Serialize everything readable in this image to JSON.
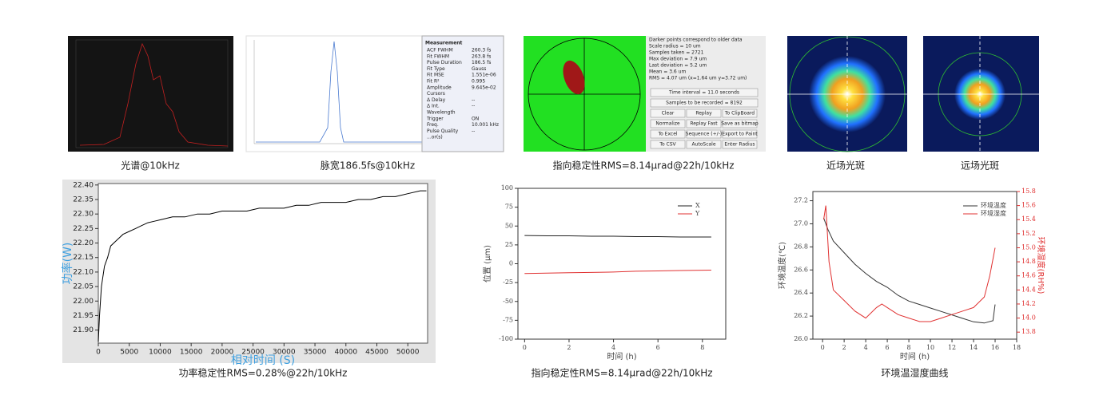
{
  "images": [
    {
      "caption": "光谱@10kHz"
    },
    {
      "caption": "脉宽186.5fs@10kHz",
      "measurement_title": "Measurement",
      "measurement": [
        [
          "ACF FWHM",
          "260.3 fs"
        ],
        [
          "Fit FWHM",
          "263.8 fs"
        ],
        [
          "Pulse Duration",
          "186.5 fs"
        ],
        [
          "Fit Type",
          "Gauss"
        ],
        [
          "Fit MSE",
          "1.551e-06"
        ],
        [
          "Fit R²",
          "0.995"
        ],
        [
          "Amplitude",
          "9.645e-02"
        ],
        [
          "Cursors"
        ],
        [
          "Δ Delay",
          "--"
        ],
        [
          "Δ Int.",
          "--"
        ],
        [
          "Wavelength"
        ],
        [
          "Trigger",
          "ON"
        ],
        [
          "Freq.",
          "10.001 kHz"
        ],
        [
          "Pulse Quality",
          "--"
        ],
        [
          "...or(s)"
        ]
      ]
    },
    {
      "caption": "指向稳定性RMS=8.14μrad@22h/10kHz",
      "info": [
        "Darker points correspond to older data",
        "Scale radius = 10 um",
        "Samples taken = 2721",
        "Max deviation = 7.9 um",
        "Last deviation = 5.2 um",
        "Mean = 3.6 um",
        "RMS = 4.07 um (x=1.64 um y=3.72 um)"
      ],
      "wide_buttons": [
        "Time interval = 11.0 seconds",
        "Samples to be recorded = 8192"
      ],
      "buttons": [
        "Clear",
        "Replay",
        "To ClipBoard",
        "Normalize",
        "Replay Fast",
        "Save as bitmap",
        "To Excel",
        "Sequence (+/-)",
        "Export to Paint",
        "To CSV",
        "AutoScale",
        "Enter Radius"
      ]
    },
    {
      "caption": "近场光斑"
    },
    {
      "caption": "远场光斑"
    }
  ],
  "chart_data": [
    {
      "type": "line",
      "caption": "功率稳定性RMS=0.28%@22h/10kHz",
      "ylabel": "功率(W)",
      "xlabel": "相对时间 (S)",
      "x": [
        0,
        200,
        500,
        1000,
        1500,
        2000,
        3000,
        4000,
        5000,
        6000,
        7000,
        8000,
        9000,
        10000,
        12000,
        14000,
        16000,
        18000,
        20000,
        22000,
        24000,
        26000,
        28000,
        30000,
        32000,
        34000,
        36000,
        38000,
        40000,
        42000,
        44000,
        46000,
        48000,
        50000,
        52000,
        53000
      ],
      "series": [
        {
          "color": "#000000",
          "values": [
            21.86,
            21.95,
            22.05,
            22.12,
            22.15,
            22.19,
            22.21,
            22.23,
            22.24,
            22.25,
            22.26,
            22.27,
            22.275,
            22.28,
            22.29,
            22.29,
            22.3,
            22.3,
            22.31,
            22.31,
            22.31,
            22.32,
            22.32,
            22.32,
            22.33,
            22.33,
            22.34,
            22.34,
            22.34,
            22.35,
            22.35,
            22.36,
            22.36,
            22.37,
            22.38,
            22.38
          ]
        }
      ],
      "xlim": [
        0,
        53200
      ],
      "ylim": [
        21.855,
        22.405
      ],
      "xticks": [
        0,
        5000,
        10000,
        15000,
        20000,
        25000,
        30000,
        35000,
        40000,
        45000,
        50000
      ],
      "yticks": [
        {
          "value": 21.9,
          "label": "21.90"
        },
        {
          "value": 21.95,
          "label": "21.95"
        },
        {
          "value": 22.0,
          "label": "22.00"
        },
        {
          "value": 22.05,
          "label": "22.05"
        },
        {
          "value": 22.1,
          "label": "22.10"
        },
        {
          "value": 22.15,
          "label": "22.15"
        },
        {
          "value": 22.2,
          "label": "22.20"
        },
        {
          "value": 22.25,
          "label": "22.25"
        },
        {
          "value": 22.3,
          "label": "22.30"
        },
        {
          "value": 22.35,
          "label": "22.35"
        },
        {
          "value": 22.4,
          "label": "22.40"
        }
      ]
    },
    {
      "type": "line",
      "caption": "指向稳定性RMS=8.14μrad@22h/10kHz",
      "ylabel": "位置 (μm)",
      "xlabel": "时间 (h)",
      "x": [
        0,
        1,
        2,
        3,
        4,
        5,
        6,
        7,
        8.4
      ],
      "series": [
        {
          "name": "X",
          "color": "#222222",
          "values": [
            37.5,
            37,
            37,
            36.5,
            36.5,
            36,
            36,
            35.5,
            35.5
          ]
        },
        {
          "name": "Y",
          "color": "#e03030",
          "values": [
            -13,
            -12.5,
            -12,
            -11.5,
            -11,
            -10,
            -9.5,
            -9,
            -8.5
          ]
        }
      ],
      "xlim": [
        -0.3,
        9.05
      ],
      "ylim": [
        -100,
        100
      ],
      "xticks": [
        0,
        2,
        4,
        6,
        8
      ],
      "yticks": [
        -100,
        -75,
        -50,
        -25,
        0,
        25,
        50,
        75,
        100
      ]
    },
    {
      "type": "line",
      "caption": "环境温湿度曲线",
      "ylabel": "环境温度(℃)",
      "y2label": "环境湿度(RH%)",
      "xlabel": "时间 (h)",
      "series": [
        {
          "name": "环境温度",
          "color": "#333333",
          "x": [
            0.1,
            0.5,
            1,
            2,
            3,
            4,
            5,
            6,
            7,
            8,
            9,
            10,
            11,
            12,
            13,
            14,
            15,
            15.8,
            16
          ],
          "values": [
            27.05,
            26.95,
            26.85,
            26.75,
            26.65,
            26.57,
            26.5,
            26.45,
            26.38,
            26.33,
            26.3,
            26.27,
            26.24,
            26.21,
            26.18,
            26.15,
            26.14,
            26.16,
            26.3
          ]
        },
        {
          "name": "环境湿度",
          "color": "#e03030",
          "axis": "y2",
          "x": [
            0.1,
            0.3,
            0.6,
            1,
            2,
            3,
            4,
            5,
            5.5,
            6,
            7,
            8,
            9,
            10,
            11,
            12,
            13,
            14,
            15,
            15.5,
            16
          ],
          "values": [
            15.4,
            15.6,
            14.8,
            14.4,
            14.25,
            14.1,
            14.0,
            14.15,
            14.2,
            14.15,
            14.05,
            14.0,
            13.95,
            13.95,
            14.0,
            14.05,
            14.1,
            14.15,
            14.3,
            14.6,
            15.0
          ]
        }
      ],
      "xlim": [
        -0.9,
        18
      ],
      "ylim": [
        26.0,
        27.28
      ],
      "y2lim": [
        13.7,
        15.8
      ],
      "xticks": [
        0,
        2,
        4,
        6,
        8,
        10,
        12,
        14,
        16,
        18
      ],
      "yticks": [
        {
          "value": 26.0,
          "label": "26.0"
        },
        {
          "value": 26.2,
          "label": "26.2"
        },
        {
          "value": 26.4,
          "label": "26.4"
        },
        {
          "value": 26.6,
          "label": "26.6"
        },
        {
          "value": 26.8,
          "label": "26.8"
        },
        {
          "value": 27.0,
          "label": "27.0"
        },
        {
          "value": 27.2,
          "label": "27.2"
        }
      ],
      "y2ticks": [
        {
          "value": 13.8,
          "label": "13.8"
        },
        {
          "value": 14.0,
          "label": "14.0"
        },
        {
          "value": 14.2,
          "label": "14.2"
        },
        {
          "value": 14.4,
          "label": "14.4"
        },
        {
          "value": 14.6,
          "label": "14.6"
        },
        {
          "value": 14.8,
          "label": "14.8"
        },
        {
          "value": 15.0,
          "label": "15.0"
        },
        {
          "value": 15.2,
          "label": "15.2"
        },
        {
          "value": 15.4,
          "label": "15.4"
        },
        {
          "value": 15.6,
          "label": "15.6"
        },
        {
          "value": 15.8,
          "label": "15.8"
        }
      ]
    }
  ]
}
